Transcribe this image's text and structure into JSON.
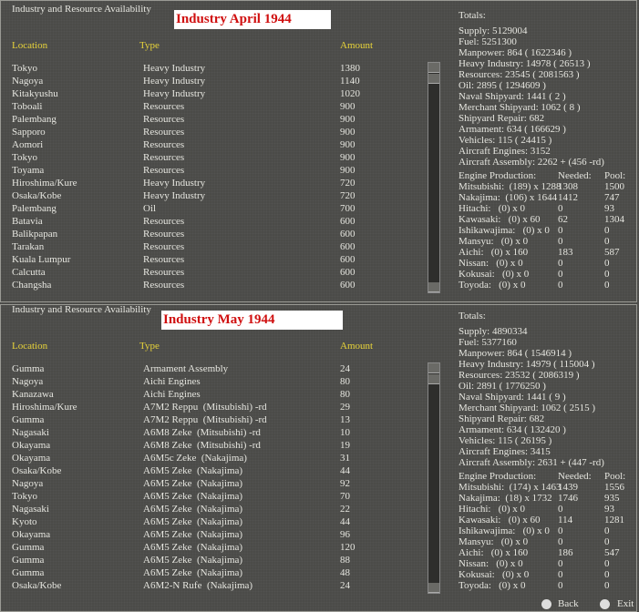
{
  "panels": [
    {
      "header": "Industry and Resource Availability",
      "title": "Industry April 1944",
      "columns": [
        "Location",
        "Type",
        "Amount"
      ],
      "rows": [
        [
          "Tokyo",
          "Heavy Industry",
          1380
        ],
        [
          "Nagoya",
          "Heavy Industry",
          1140
        ],
        [
          "Kitakyushu",
          "Heavy Industry",
          1020
        ],
        [
          "Toboali",
          "Resources",
          900
        ],
        [
          "Palembang",
          "Resources",
          900
        ],
        [
          "Sapporo",
          "Resources",
          900
        ],
        [
          "Aomori",
          "Resources",
          900
        ],
        [
          "Tokyo",
          "Resources",
          900
        ],
        [
          "Toyama",
          "Resources",
          900
        ],
        [
          "Hiroshima/Kure",
          "Heavy Industry",
          720
        ],
        [
          "Osaka/Kobe",
          "Heavy Industry",
          720
        ],
        [
          "Palembang",
          "Oil",
          700
        ],
        [
          "Batavia",
          "Resources",
          600
        ],
        [
          "Balikpapan",
          "Resources",
          600
        ],
        [
          "Tarakan",
          "Resources",
          600
        ],
        [
          "Kuala Lumpur",
          "Resources",
          600
        ],
        [
          "Calcutta",
          "Resources",
          600
        ],
        [
          "Changsha",
          "Resources",
          600
        ]
      ],
      "totals_label": "Totals:",
      "totals": [
        "Supply: 5129004",
        "Fuel: 5251300",
        "Manpower: 864 ( 1622346 )",
        "Heavy Industry: 14978 ( 26513 )",
        "Resources: 23545 ( 2081563 )",
        "Oil: 2895 ( 1294609 )",
        "Naval Shipyard: 1441 ( 2 )",
        "Merchant Shipyard: 1062 ( 8 )",
        "Shipyard Repair: 682",
        "Armament: 634 ( 166629 )",
        "Vehicles: 115 ( 24415 )",
        "Aircraft Engines: 3152",
        "Aircraft Assembly: 2262 + (456 -rd)"
      ],
      "engine_header": [
        "Engine Production:",
        "Needed:",
        "Pool:"
      ],
      "engines": [
        [
          "Mitsubishi:  (189) x 1288",
          1308,
          1500
        ],
        [
          "Nakajima:  (106) x 1644",
          1412,
          747
        ],
        [
          "Hitachi:   (0) x 0",
          0,
          93
        ],
        [
          "Kawasaki:   (0) x 60",
          62,
          1304
        ],
        [
          "Ishikawajima:   (0) x 0",
          0,
          0
        ],
        [
          "Mansyu:   (0) x 0",
          0,
          0
        ],
        [
          "Aichi:   (0) x 160",
          183,
          587
        ],
        [
          "Nissan:   (0) x 0",
          0,
          0
        ],
        [
          "Kokusai:   (0) x 0",
          0,
          0
        ],
        [
          "Toyoda:   (0) x 0",
          0,
          0
        ]
      ]
    },
    {
      "header": "Industry and Resource Availability",
      "title": "Industry May 1944",
      "columns": [
        "Location",
        "Type",
        "Amount"
      ],
      "rows": [
        [
          "Gumma",
          "Armament Assembly",
          24
        ],
        [
          "Nagoya",
          "Aichi Engines",
          80
        ],
        [
          "Kanazawa",
          "Aichi Engines",
          80
        ],
        [
          "Hiroshima/Kure",
          "A7M2 Reppu  (Mitsubishi) -rd",
          29
        ],
        [
          "Gumma",
          "A7M2 Reppu  (Mitsubishi) -rd",
          13
        ],
        [
          "Nagasaki",
          "A6M8 Zeke  (Mitsubishi) -rd",
          10
        ],
        [
          "Okayama",
          "A6M8 Zeke  (Mitsubishi) -rd",
          19
        ],
        [
          "Okayama",
          "A6M5c Zeke  (Nakajima)",
          31
        ],
        [
          "Osaka/Kobe",
          "A6M5 Zeke  (Nakajima)",
          44
        ],
        [
          "Nagoya",
          "A6M5 Zeke  (Nakajima)",
          92
        ],
        [
          "Tokyo",
          "A6M5 Zeke  (Nakajima)",
          70
        ],
        [
          "Nagasaki",
          "A6M5 Zeke  (Nakajima)",
          22
        ],
        [
          "Kyoto",
          "A6M5 Zeke  (Nakajima)",
          44
        ],
        [
          "Okayama",
          "A6M5 Zeke  (Nakajima)",
          96
        ],
        [
          "Gumma",
          "A6M5 Zeke  (Nakajima)",
          120
        ],
        [
          "Gumma",
          "A6M5 Zeke  (Nakajima)",
          88
        ],
        [
          "Gumma",
          "A6M5 Zeke  (Nakajima)",
          48
        ],
        [
          "Osaka/Kobe",
          "A6M2-N Rufe  (Nakajima)",
          24
        ]
      ],
      "totals_label": "Totals:",
      "totals": [
        "Supply: 4890334",
        "Fuel: 5377160",
        "Manpower: 864 ( 1546914 )",
        "Heavy Industry: 14979 ( 115004 )",
        "Resources: 23532 ( 2086319 )",
        "Oil: 2891 ( 1776250 )",
        "Naval Shipyard: 1441 ( 9 )",
        "Merchant Shipyard: 1062 ( 2515 )",
        "Shipyard Repair: 682",
        "Armament: 634 ( 132420 )",
        "Vehicles: 115 ( 26195 )",
        "Aircraft Engines: 3415",
        "Aircraft Assembly: 2631 + (447 -rd)"
      ],
      "engine_header": [
        "Engine Production:",
        "Needed:",
        "Pool:"
      ],
      "engines": [
        [
          "Mitsubishi:  (174) x 1463",
          1439,
          1556
        ],
        [
          "Nakajima:  (18) x 1732",
          1746,
          935
        ],
        [
          "Hitachi:   (0) x 0",
          0,
          93
        ],
        [
          "Kawasaki:   (0) x 60",
          114,
          1281
        ],
        [
          "Ishikawajima:   (0) x 0",
          0,
          0
        ],
        [
          "Mansyu:   (0) x 0",
          0,
          0
        ],
        [
          "Aichi:   (0) x 160",
          186,
          547
        ],
        [
          "Nissan:   (0) x 0",
          0,
          0
        ],
        [
          "Kokusai:   (0) x 0",
          0,
          0
        ],
        [
          "Toyoda:   (0) x 0",
          0,
          0
        ]
      ]
    }
  ],
  "buttons": [
    "Back",
    "Exit"
  ]
}
